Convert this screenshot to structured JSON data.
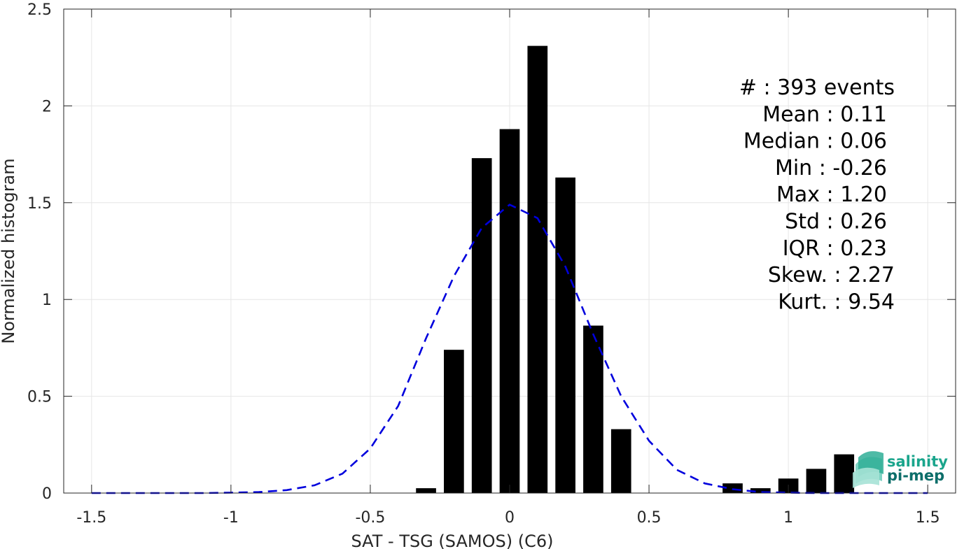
{
  "chart_data": {
    "type": "bar",
    "xlabel": "SAT - TSG (SAMOS) (C6)",
    "ylabel": "Normalized histogram",
    "xlim": [
      -1.6,
      1.6
    ],
    "ylim": [
      0,
      2.5
    ],
    "xticks": [
      -1.5,
      -1,
      -0.5,
      0,
      0.5,
      1,
      1.5
    ],
    "xtick_labels": [
      "-1.5",
      "-1",
      "-0.5",
      "0",
      "0.5",
      "1",
      "1.5"
    ],
    "yticks": [
      0,
      0.5,
      1,
      1.5,
      2,
      2.5
    ],
    "ytick_labels": [
      "0",
      "0.5",
      "1",
      "1.5",
      "2",
      "2.5"
    ],
    "grid": true,
    "bin_width": 0.1,
    "bars": {
      "x": [
        -0.3,
        -0.2,
        -0.1,
        0.0,
        0.1,
        0.2,
        0.3,
        0.4,
        0.8,
        0.9,
        1.0,
        1.1,
        1.2
      ],
      "values": [
        0.025,
        0.74,
        1.73,
        1.88,
        2.31,
        1.63,
        0.865,
        0.33,
        0.05,
        0.025,
        0.075,
        0.125,
        0.2
      ]
    },
    "fit_curve": {
      "style": "dashed",
      "color": "#0000dd",
      "x": [
        -1.5,
        -1.4,
        -1.3,
        -1.2,
        -1.1,
        -1.0,
        -0.9,
        -0.8,
        -0.7,
        -0.6,
        -0.5,
        -0.4,
        -0.3,
        -0.2,
        -0.1,
        0.0,
        0.1,
        0.2,
        0.3,
        0.4,
        0.5,
        0.6,
        0.7,
        0.8,
        0.9,
        1.0,
        1.1,
        1.2,
        1.3,
        1.4,
        1.5
      ],
      "y": [
        0.0,
        0.0,
        0.0,
        0.0,
        0.0,
        0.002,
        0.005,
        0.015,
        0.04,
        0.1,
        0.23,
        0.45,
        0.8,
        1.12,
        1.37,
        1.49,
        1.42,
        1.17,
        0.82,
        0.5,
        0.27,
        0.12,
        0.05,
        0.02,
        0.005,
        0.002,
        0.0,
        0.0,
        0.0,
        0.0,
        0.0
      ]
    },
    "annotations": [
      "#  : 393 events",
      "Mean : 0.11",
      "Median : 0.06",
      "Min : -0.26",
      "Max : 1.20",
      "Std : 0.26",
      "IQR : 0.23",
      "Skew. : 2.27",
      "Kurt. : 9.54"
    ]
  },
  "logo": {
    "line1": "salinity",
    "line2": "pi-mep",
    "color1": "#1aa58c",
    "color2": "#0d6e6a"
  },
  "colors": {
    "bars": "#000000",
    "grid": "#e6e6e6",
    "axes": "#262626"
  }
}
